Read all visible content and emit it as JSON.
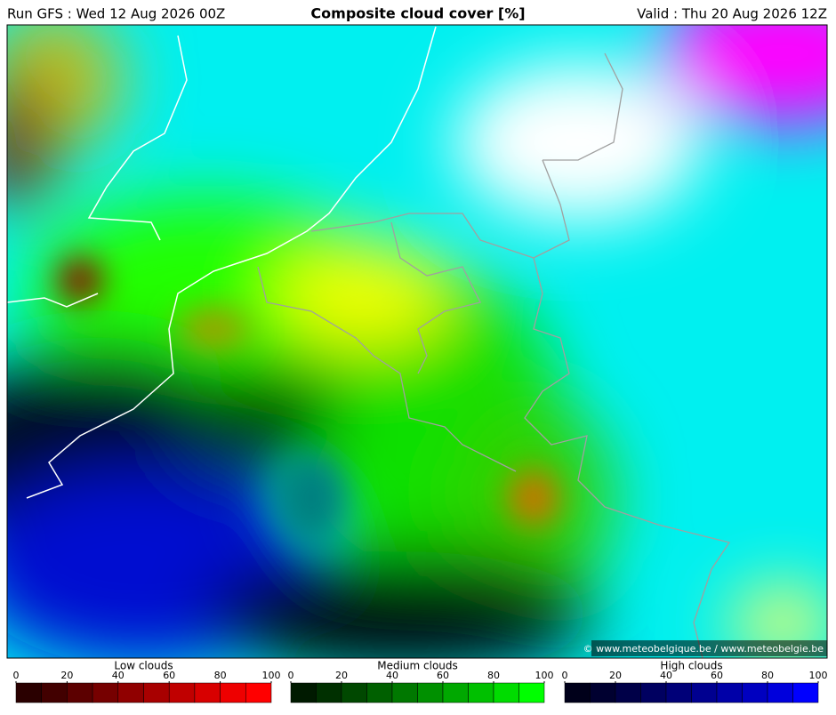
{
  "header": {
    "run": "Run GFS : Wed 12 Aug 2026 00Z",
    "title": "Composite cloud cover [%]",
    "valid": "Valid : Thu 20 Aug 2026 12Z"
  },
  "credit": "© www.meteobelgique.be / www.meteobelgie.be",
  "legends": [
    {
      "title": "Low clouds",
      "ticks": [
        0,
        20,
        40,
        60,
        80,
        100
      ],
      "colors": [
        "#2a0000",
        "#420000",
        "#5c0000",
        "#760000",
        "#900000",
        "#a80000",
        "#c00000",
        "#d80000",
        "#ee0000",
        "#ff0000"
      ]
    },
    {
      "title": "Medium clouds",
      "ticks": [
        0,
        20,
        40,
        60,
        80,
        100
      ],
      "colors": [
        "#001a00",
        "#003000",
        "#004800",
        "#006000",
        "#007800",
        "#009000",
        "#00a800",
        "#00c000",
        "#00dc00",
        "#00ff00"
      ]
    },
    {
      "title": "High clouds",
      "ticks": [
        0,
        20,
        40,
        60,
        80,
        100
      ],
      "colors": [
        "#00001a",
        "#000030",
        "#000048",
        "#000060",
        "#000078",
        "#000090",
        "#0000a8",
        "#0000c0",
        "#0000dc",
        "#0000ff"
      ]
    }
  ]
}
